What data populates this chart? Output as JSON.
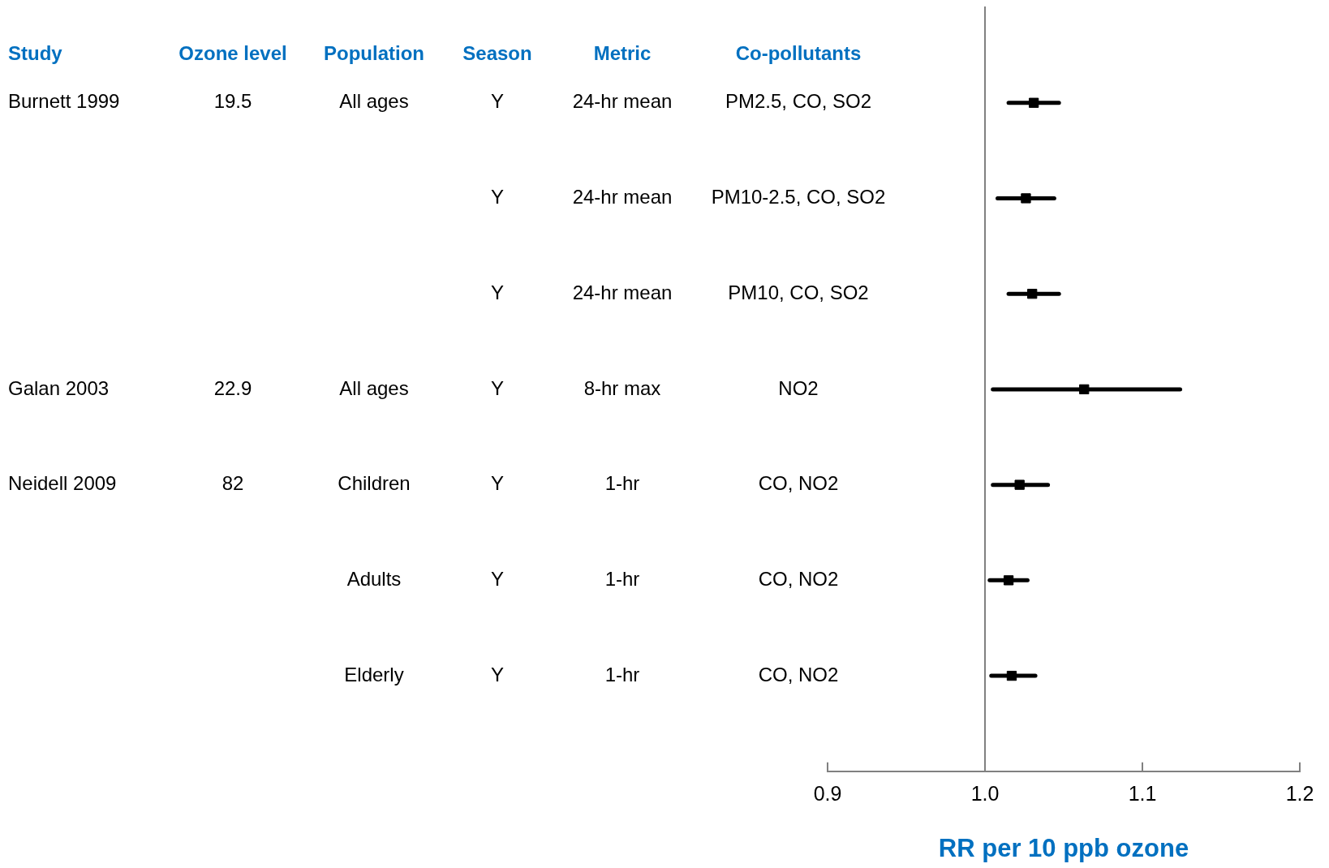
{
  "chart_data": {
    "type": "scatter",
    "orientation": "horizontal",
    "categories": [
      null,
      null,
      null,
      null,
      null,
      null,
      null
    ],
    "tick_labels": "x",
    "values": [
      1.031,
      1.026,
      1.03,
      1.063,
      1.022,
      1.015,
      1.017
    ],
    "errors": [
      [
        1.015,
        1.047
      ],
      [
        1.008,
        1.044
      ],
      [
        1.015,
        1.047
      ],
      [
        1.005,
        1.124
      ],
      [
        1.005,
        1.04
      ],
      [
        1.003,
        1.027
      ],
      [
        1.004,
        1.032
      ]
    ],
    "color": "#000000",
    "marker": "square",
    "grid": false,
    "legend": false,
    "xlim": [
      0.9,
      1.2
    ],
    "xticks": [
      {
        "value": 0.9,
        "label": "0.9"
      },
      {
        "value": 1,
        "label": "1.0"
      },
      {
        "value": 1.1,
        "label": "1.1"
      },
      {
        "value": 1.2,
        "label": "1.2"
      }
    ],
    "xlabel": "RR per 10 ppb ozone",
    "ref_lines": [
      {
        "axis": "x",
        "value": 1,
        "color": "#808080"
      }
    ],
    "annotations": [
      "Study",
      "Ozone level",
      "Population",
      "Season",
      "Metric",
      "Co-pollutants",
      "Burnett 1999",
      "19.5",
      "All ages",
      "Y",
      "24-hr mean",
      "PM2.5, CO, SO2",
      "Y",
      "24-hr mean",
      "PM10-2.5, CO, SO2",
      "Y",
      "24-hr mean",
      "PM10, CO, SO2",
      "Galan 2003",
      "22.9",
      "All ages",
      "Y",
      "8-hr max",
      "NO2",
      "Neidell 2009",
      "82",
      "Children",
      "Y",
      "1-hr",
      "CO, NO2",
      "Adults",
      "Y",
      "1-hr",
      "CO, NO2",
      "Elderly",
      "Y",
      "1-hr",
      "CO, NO2"
    ]
  }
}
